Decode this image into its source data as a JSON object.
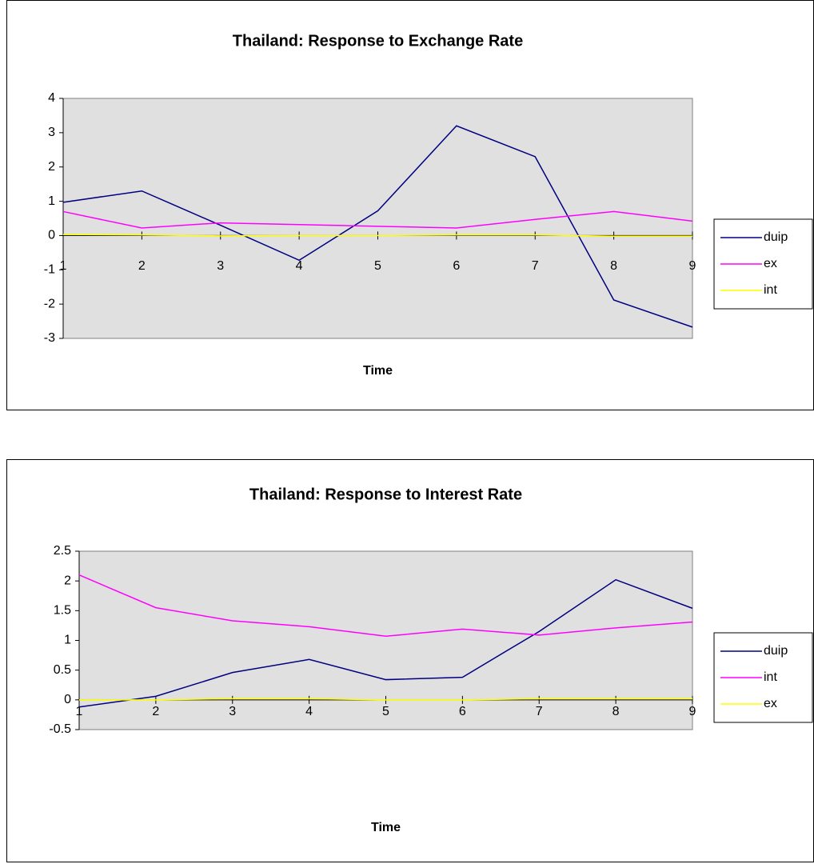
{
  "chart_data": [
    {
      "type": "line",
      "title": "Thailand: Response to Exchange Rate",
      "x_label": "Time",
      "x": [
        1,
        2,
        3,
        4,
        5,
        6,
        7,
        8,
        9
      ],
      "xlim": [
        1,
        9
      ],
      "xticks": [
        1,
        2,
        3,
        4,
        5,
        6,
        7,
        8,
        9
      ],
      "ylim": [
        -3,
        4
      ],
      "yticks": [
        -3,
        -2,
        -1,
        0,
        1,
        2,
        3,
        4
      ],
      "legend": "right",
      "series": [
        {
          "name": "duip",
          "color": "#000080",
          "values": [
            0.97,
            1.3,
            0.3,
            -0.72,
            0.72,
            3.2,
            2.3,
            -1.88,
            -2.67
          ]
        },
        {
          "name": "ex",
          "color": "#ff00ff",
          "values": [
            0.7,
            0.22,
            0.37,
            0.32,
            0.27,
            0.22,
            0.47,
            0.7,
            0.42
          ]
        },
        {
          "name": "int",
          "color": "#ffff00",
          "values": [
            0.03,
            0.02,
            -0.01,
            0,
            0,
            0.02,
            0.02,
            -0.02,
            -0.02
          ]
        }
      ]
    },
    {
      "type": "line",
      "title": "Thailand: Response to Interest Rate",
      "x_label": "Time",
      "x": [
        1,
        2,
        3,
        4,
        5,
        6,
        7,
        8,
        9
      ],
      "xlim": [
        1,
        9
      ],
      "xticks": [
        1,
        2,
        3,
        4,
        5,
        6,
        7,
        8,
        9
      ],
      "ylim": [
        -0.5,
        2.5
      ],
      "yticks": [
        -0.5,
        0,
        0.5,
        1,
        1.5,
        2,
        2.5
      ],
      "legend": "right",
      "series": [
        {
          "name": "duip",
          "color": "#000080",
          "values": [
            -0.12,
            0.06,
            0.46,
            0.68,
            0.34,
            0.38,
            1.15,
            2.02,
            1.54
          ]
        },
        {
          "name": "int",
          "color": "#ff00ff",
          "values": [
            2.1,
            1.55,
            1.33,
            1.23,
            1.07,
            1.19,
            1.09,
            1.21,
            1.31
          ]
        },
        {
          "name": "ex",
          "color": "#ffff00",
          "values": [
            0,
            0,
            0.02,
            0.02,
            0,
            0,
            0.02,
            0.02,
            0.02
          ]
        }
      ]
    }
  ]
}
